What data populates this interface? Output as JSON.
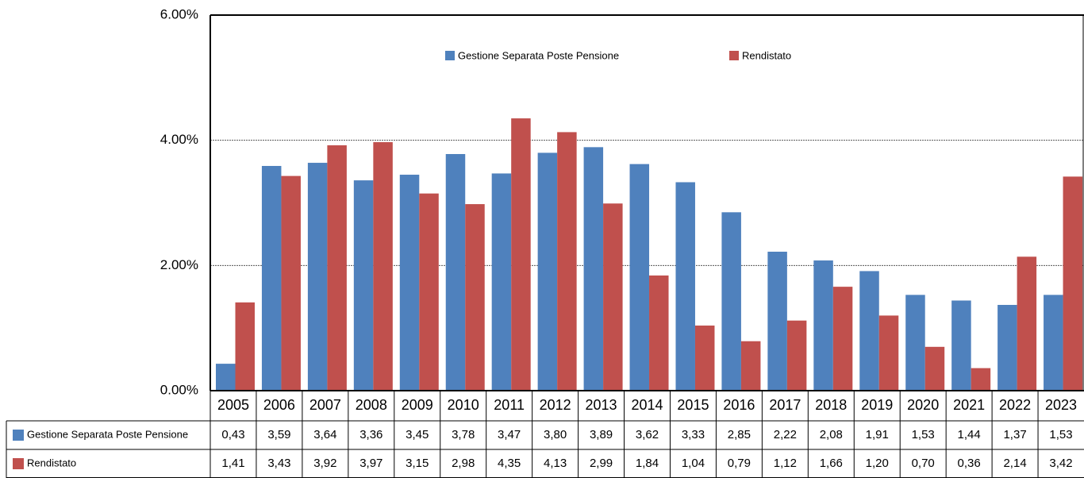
{
  "chart_data": {
    "type": "bar",
    "categories": [
      "2005",
      "2006",
      "2007",
      "2008",
      "2009",
      "2010",
      "2011",
      "2012",
      "2013",
      "2014",
      "2015",
      "2016",
      "2017",
      "2018",
      "2019",
      "2020",
      "2021",
      "2022",
      "2023"
    ],
    "series": [
      {
        "name": "Gestione Separata Poste Pensione",
        "color": "#4f81bd",
        "values": [
          0.43,
          3.59,
          3.64,
          3.36,
          3.45,
          3.78,
          3.47,
          3.8,
          3.89,
          3.62,
          3.33,
          2.85,
          2.22,
          2.08,
          1.91,
          1.53,
          1.44,
          1.37,
          1.53
        ],
        "value_labels": [
          "0,43",
          "3,59",
          "3,64",
          "3,36",
          "3,45",
          "3,78",
          "3,47",
          "3,80",
          "3,89",
          "3,62",
          "3,33",
          "2,85",
          "2,22",
          "2,08",
          "1,91",
          "1,53",
          "1,44",
          "1,37",
          "1,53"
        ]
      },
      {
        "name": "Rendistato",
        "color": "#c0504d",
        "values": [
          1.41,
          3.43,
          3.92,
          3.97,
          3.15,
          2.98,
          4.35,
          4.13,
          2.99,
          1.84,
          1.04,
          0.79,
          1.12,
          1.66,
          1.2,
          0.7,
          0.36,
          2.14,
          3.42
        ],
        "value_labels": [
          "1,41",
          "3,43",
          "3,92",
          "3,97",
          "3,15",
          "2,98",
          "4,35",
          "4,13",
          "2,99",
          "1,84",
          "1,04",
          "0,79",
          "1,12",
          "1,66",
          "1,20",
          "0,70",
          "0,36",
          "2,14",
          "3,42"
        ]
      }
    ],
    "ylim": [
      0,
      6
    ],
    "yticks": [
      {
        "value": 0,
        "label": "0.00%"
      },
      {
        "value": 2,
        "label": "2.00%"
      },
      {
        "value": 4,
        "label": "4.00%"
      },
      {
        "value": 6,
        "label": "6.00%"
      }
    ],
    "grid": true
  }
}
